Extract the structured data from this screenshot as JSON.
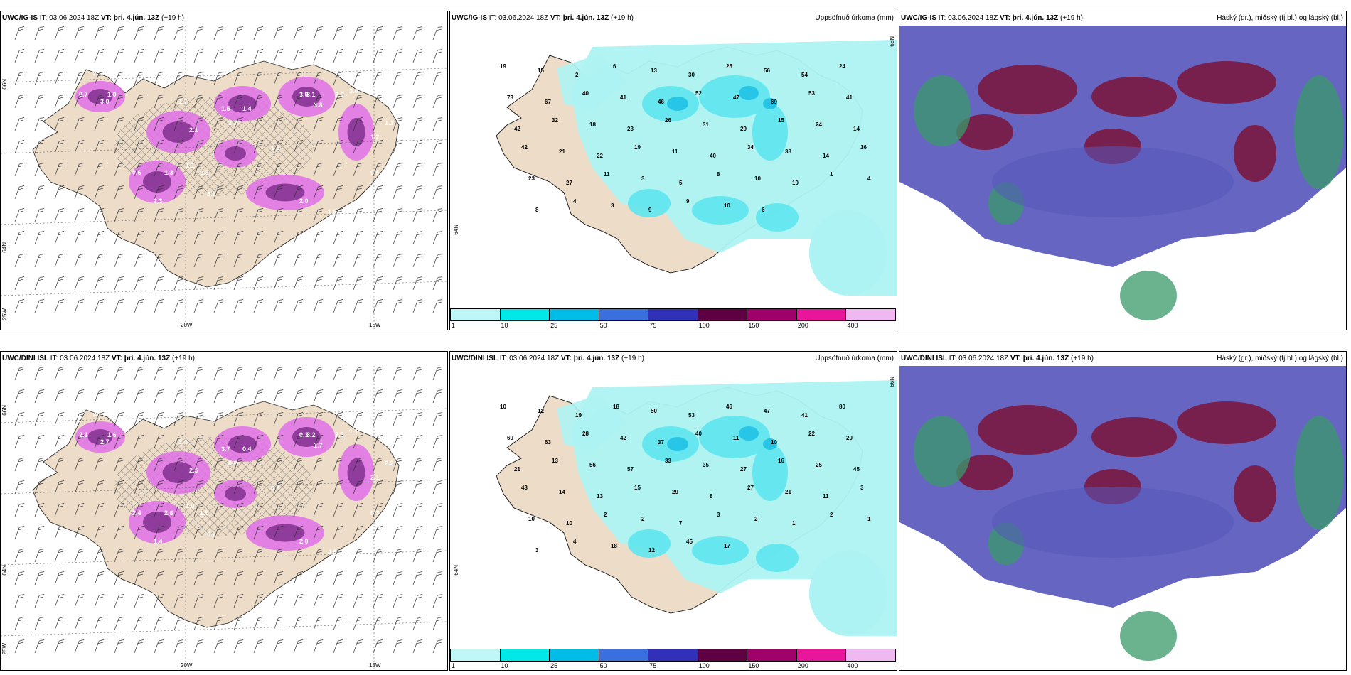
{
  "rows": [
    {
      "model": "UWC/IG-IS",
      "it_label": "IT:",
      "it": "03.06.2024 18Z",
      "vt_label": "VT: þri. 4.jún. 13Z",
      "lead": "(+19 h)",
      "precip_title": "Uppsöfnuð úrkoma (mm)",
      "cloud_title": "Háský (gr.), miðský (fj.bl.) og lágský (bl.)",
      "wind_values": [
        "2.9",
        "1.0",
        "3.0",
        "0.7",
        "1.7",
        "2.1",
        "1.1",
        "2.2",
        "3.1",
        "3.8",
        "2.0",
        "1.6",
        "3.6",
        "3.9",
        "1.5",
        "1.2",
        "0.5",
        "0.6",
        "1.3",
        "2.3",
        "3.7",
        "1.6",
        "2.0",
        "1.1",
        "1.4",
        "0.3"
      ],
      "precip_values": [
        "19",
        "15",
        "2",
        "6",
        "13",
        "30",
        "25",
        "56",
        "54",
        "24",
        "73",
        "67",
        "40",
        "41",
        "46",
        "52",
        "47",
        "69",
        "53",
        "41",
        "42",
        "32",
        "18",
        "23",
        "26",
        "31",
        "29",
        "15",
        "24",
        "14",
        "42",
        "21",
        "22",
        "19",
        "11",
        "40",
        "34",
        "38",
        "14",
        "16",
        "23",
        "27",
        "11",
        "3",
        "5",
        "8",
        "10",
        "10",
        "1",
        "4",
        "8",
        "4",
        "3",
        "9",
        "9",
        "10",
        "6"
      ]
    },
    {
      "model": "UWC/DINI ISL",
      "it_label": "IT:",
      "it": "03.06.2024 18Z",
      "vt_label": "VT: þri. 4.jún. 13Z",
      "lead": "(+19 h)",
      "precip_title": "Uppsöfnuð úrkoma (mm)",
      "cloud_title": "Háský (gr.), miðský (fj.bl.) og lágský (bl.)",
      "wind_values": [
        "2.4",
        "1.6",
        "2.7",
        "2.1",
        "3.4",
        "2.5",
        "1.0",
        "0.8",
        "3.2",
        "1.7",
        "2.3",
        "0.6",
        "1.1",
        "0.3",
        "3.7",
        "2.1",
        "0.3",
        "2.4",
        "2.6",
        "1.4",
        "0.7",
        "4.6",
        "2.0",
        "2.2",
        "0.4",
        "1.5"
      ],
      "precip_values": [
        "10",
        "12",
        "19",
        "18",
        "50",
        "53",
        "46",
        "47",
        "41",
        "80",
        "69",
        "63",
        "28",
        "42",
        "37",
        "40",
        "11",
        "10",
        "22",
        "20",
        "21",
        "13",
        "56",
        "57",
        "33",
        "35",
        "27",
        "16",
        "25",
        "45",
        "43",
        "14",
        "13",
        "15",
        "29",
        "8",
        "27",
        "21",
        "11",
        "3",
        "10",
        "10",
        "2",
        "2",
        "7",
        "3",
        "2",
        "1",
        "2",
        "1",
        "3",
        "4",
        "18",
        "12",
        "45",
        "17"
      ]
    }
  ],
  "axes": {
    "lat_labels": [
      "66N",
      "64N",
      "25W"
    ],
    "lon_labels": [
      "20W",
      "15W"
    ]
  },
  "colorbar": {
    "ticks": [
      "1",
      "10",
      "25",
      "50",
      "75",
      "100",
      "150",
      "200",
      "400"
    ],
    "colors": [
      "#bff7f7",
      "#00e8e8",
      "#00bde8",
      "#3a6fe0",
      "#3030b8",
      "#5e0042",
      "#a0006a",
      "#e8169a",
      "#f0b8f0"
    ]
  },
  "colors": {
    "land": "#ecdcc8",
    "sea": "#ffffff",
    "precip_light": "#aef3f3",
    "precip_mid": "#5ee6ee",
    "precip_high": "#28c6e6",
    "snow_dark": "#7a2a8a",
    "snow_light": "#e070e8",
    "cloud_high": "#5555bb",
    "cloud_mid": "#7a1840",
    "cloud_low": "#3a9a6a"
  }
}
